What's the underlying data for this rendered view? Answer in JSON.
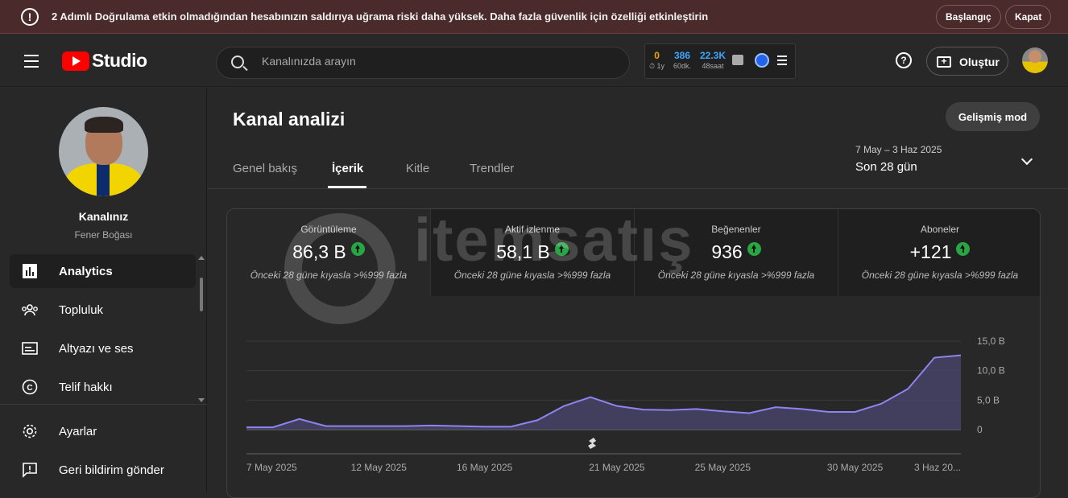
{
  "banner": {
    "message": "2 Adımlı Doğrulama etkin olmadığından hesabınızın saldırıya uğrama riski daha yüksek. Daha fazla güvenlik için özelliği etkinleştirin",
    "start_label": "Başlangıç",
    "close_label": "Kapat",
    "icon": "exclamation-icon"
  },
  "header": {
    "logo_text": "Studio",
    "search_placeholder": "Kanalınızda arayın",
    "extension": {
      "stats": [
        {
          "value": "0",
          "label": "1y",
          "color": "#f0a500"
        },
        {
          "value": "386",
          "label": "60dk.",
          "color": "#3ea6ff"
        },
        {
          "value": "22.3K",
          "label": "48saat",
          "color": "#3ea6ff"
        }
      ]
    },
    "create_label": "Oluştur"
  },
  "sidebar": {
    "channel_name": "Kanalınız",
    "channel_sub": "Fener Boğası",
    "items": [
      {
        "label": "Analytics",
        "icon": "analytics-icon",
        "active": true
      },
      {
        "label": "Topluluk",
        "icon": "community-icon"
      },
      {
        "label": "Altyazı ve ses",
        "icon": "subtitles-icon"
      },
      {
        "label": "Telif hakkı",
        "icon": "copyright-icon"
      }
    ],
    "bottom_items": [
      {
        "label": "Ayarlar",
        "icon": "gear-icon"
      },
      {
        "label": "Geri bildirim gönder",
        "icon": "feedback-icon"
      }
    ]
  },
  "main": {
    "title": "Kanal analizi",
    "advanced_label": "Gelişmiş mod",
    "tabs": [
      {
        "label": "Genel bakış"
      },
      {
        "label": "İçerik",
        "active": true
      },
      {
        "label": "Kitle"
      },
      {
        "label": "Trendler"
      }
    ],
    "date_range": "7 May – 3 Haz 2025",
    "date_selected": "Son 28 gün",
    "metrics": [
      {
        "label": "Görüntüleme",
        "value": "86,3 B",
        "compare": "Önceki 28 güne kıyasla >%999 fazla"
      },
      {
        "label": "Aktif izlenme",
        "value": "58,1 B",
        "compare": "Önceki 28 güne kıyasla >%999 fazla"
      },
      {
        "label": "Beğenenler",
        "value": "936",
        "compare": "Önceki 28 güne kıyasla >%999 fazla"
      },
      {
        "label": "Aboneler",
        "value": "+121",
        "compare": "Önceki 28 güne kıyasla >%999 fazla"
      }
    ],
    "watermark": "itemsatış"
  },
  "chart_data": {
    "type": "area",
    "x_tick_labels": [
      "7 May 2025",
      "12 May 2025",
      "16 May 2025",
      "21 May 2025",
      "25 May 2025",
      "30 May 2025",
      "3 Haz 20..."
    ],
    "y_tick_labels": [
      "0",
      "5,0 B",
      "10,0 B",
      "15,0 B"
    ],
    "ylim": [
      0,
      15
    ],
    "values": [
      0.4,
      0.4,
      1.8,
      0.6,
      0.6,
      0.6,
      0.6,
      0.7,
      0.6,
      0.5,
      0.5,
      1.6,
      4.0,
      5.5,
      4.0,
      3.4,
      3.3,
      3.5,
      3.1,
      2.8,
      3.8,
      3.5,
      3.0,
      3.0,
      4.4,
      6.9,
      12.2,
      12.6
    ],
    "line_color": "#8d84f0",
    "fill_color": "#4b4670",
    "marker_icon": "shorts-icon",
    "marker_index": 13
  }
}
